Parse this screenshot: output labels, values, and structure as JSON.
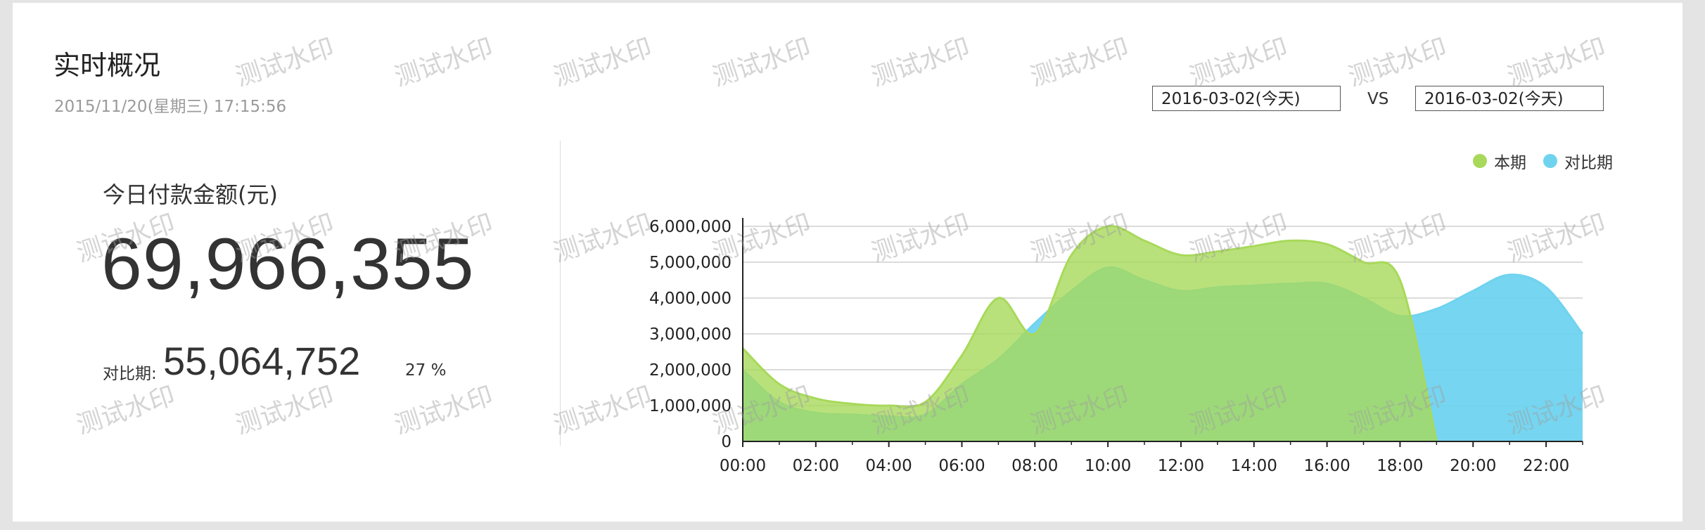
{
  "header": {
    "title": "实时概况",
    "datetime": "2015/11/20(星期三) 17:15:56"
  },
  "controls": {
    "date_a": "2016-03-02(今天)",
    "vs_label": "VS",
    "date_b": "2016-03-02(今天)"
  },
  "metric": {
    "label": "今日付款金额(元)",
    "value": "69,966,355",
    "compare_label": "对比期:",
    "compare_value": "55,064,752",
    "change_pct": "27 %"
  },
  "watermark_text": "测试水印",
  "colors": {
    "current": "#a8d95a",
    "compare": "#6fd3ef"
  },
  "chart_data": {
    "type": "area",
    "title": "",
    "xlabel": "",
    "ylabel": "",
    "legend_position": "top-right",
    "grid": true,
    "ylim": [
      0,
      6000000
    ],
    "yticks": [
      "0",
      "1,000,000",
      "2,000,000",
      "3,000,000",
      "4,000,000",
      "5,000,000",
      "6,000,000"
    ],
    "xticks": [
      "00:00",
      "02:00",
      "04:00",
      "06:00",
      "08:00",
      "10:00",
      "12:00",
      "14:00",
      "16:00",
      "18:00",
      "20:00",
      "22:00"
    ],
    "x": [
      0,
      1,
      2,
      3,
      4,
      5,
      6,
      7,
      8,
      9,
      10,
      11,
      12,
      13,
      14,
      15,
      16,
      17,
      18,
      19,
      20,
      21,
      22,
      23
    ],
    "series": [
      {
        "name": "本期",
        "color": "#a8d95a",
        "values": [
          2600000,
          1600000,
          1200000,
          1050000,
          1000000,
          1100000,
          2400000,
          4000000,
          3000000,
          5200000,
          6000000,
          5600000,
          5200000,
          5300000,
          5450000,
          5600000,
          5500000,
          5000000,
          4500000,
          0,
          null,
          null,
          null,
          null
        ]
      },
      {
        "name": "对比期",
        "color": "#6fd3ef",
        "values": [
          2000000,
          1100000,
          800000,
          750000,
          700000,
          750000,
          1600000,
          2300000,
          3300000,
          4200000,
          4850000,
          4500000,
          4200000,
          4300000,
          4350000,
          4400000,
          4400000,
          4000000,
          3500000,
          3700000,
          4200000,
          4650000,
          4300000,
          3000000
        ]
      }
    ]
  }
}
